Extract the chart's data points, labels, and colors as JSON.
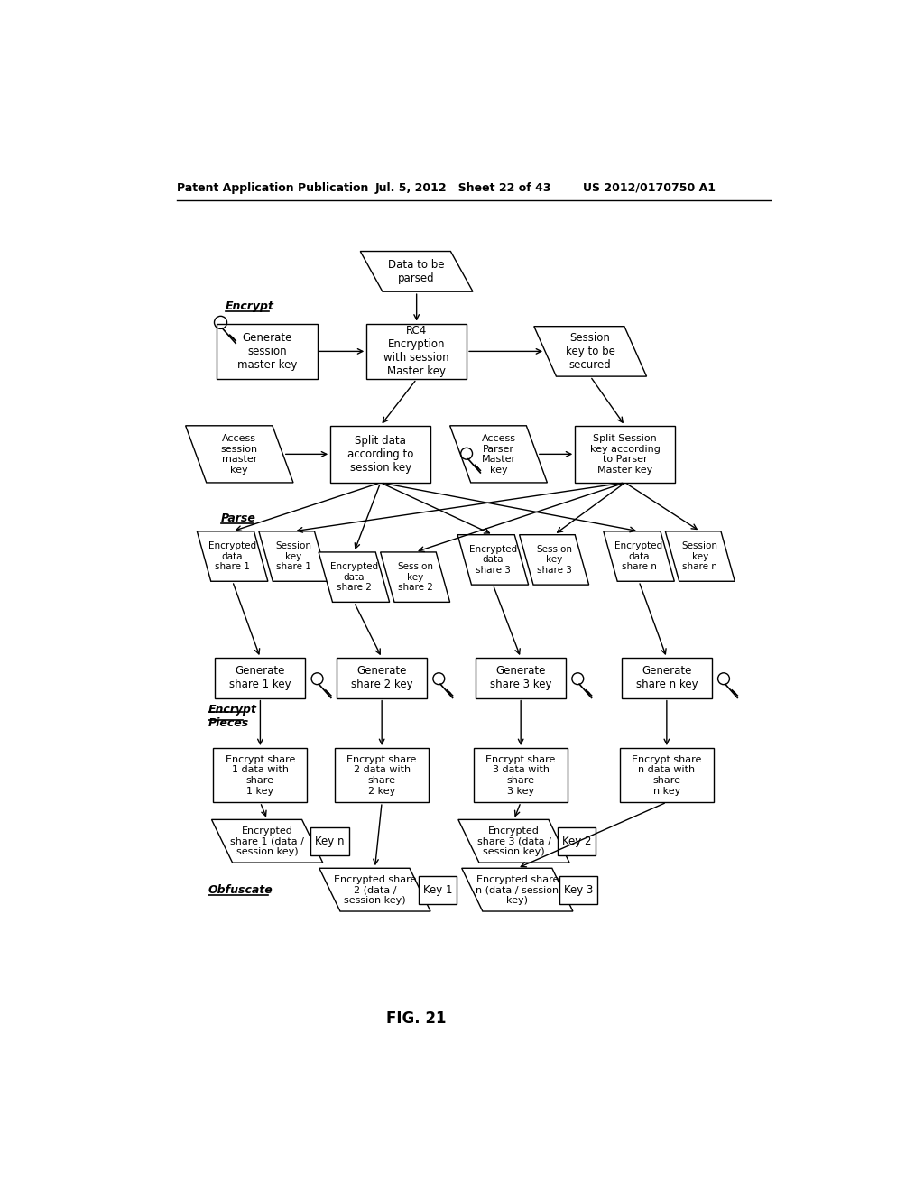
{
  "bg_color": "#ffffff",
  "header_left": "Patent Application Publication",
  "header_mid": "Jul. 5, 2012   Sheet 22 of 43",
  "header_right": "US 2012/0170750 A1",
  "fig_label": "FIG. 21"
}
